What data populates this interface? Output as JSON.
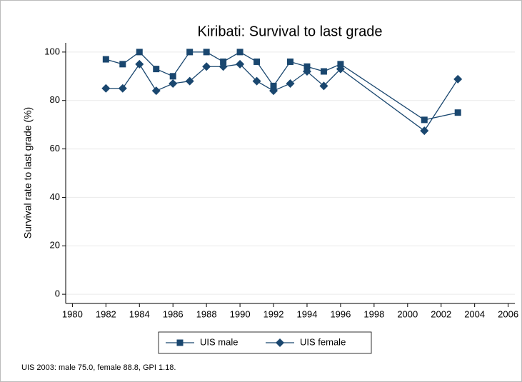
{
  "chart_data": {
    "type": "line",
    "title": "Kiribati: Survival to last grade",
    "y_label": "Survival rate to last grade (%)",
    "note": "UIS 2003: male 75.0, female 88.8, GPI 1.18.",
    "x": [
      1982,
      1983,
      1984,
      1985,
      1986,
      1987,
      1988,
      1989,
      1990,
      1991,
      1992,
      1993,
      1994,
      1995,
      1996,
      2001,
      2003
    ],
    "series": [
      {
        "name": "UIS male",
        "color": "#1a476f",
        "marker": "square",
        "values": [
          97,
          95,
          100,
          93,
          90,
          100,
          100,
          96,
          100,
          96,
          86,
          96,
          94,
          92,
          95,
          72,
          75
        ]
      },
      {
        "name": "UIS female",
        "color": "#1a476f",
        "marker": "diamond",
        "values": [
          85,
          85,
          95,
          84,
          87,
          88,
          94,
          94,
          95,
          88,
          84,
          87,
          92,
          86,
          93,
          67.5,
          88.8
        ]
      }
    ],
    "xlim": [
      1979.6,
      2006.4
    ],
    "xticks": [
      1980,
      1982,
      1984,
      1986,
      1988,
      1990,
      1992,
      1994,
      1996,
      1998,
      2000,
      2002,
      2004,
      2006
    ],
    "ylim": [
      -3.8,
      103.8
    ],
    "yticks": [
      0,
      20,
      40,
      60,
      80,
      100
    ],
    "grid": true,
    "legend": "bottom"
  }
}
